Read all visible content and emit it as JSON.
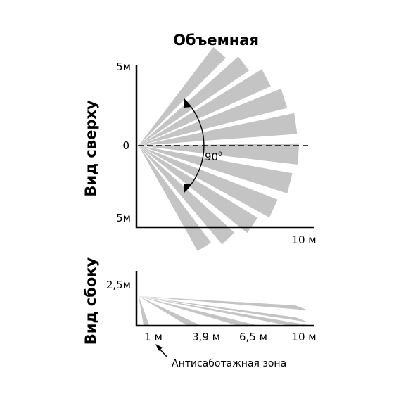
{
  "title": "Объемная",
  "top_view": {
    "label": "Вид сверху",
    "y_top_label": "5м",
    "y_center_label": "0",
    "y_bottom_label": "5м",
    "x_label": "10 м",
    "angle_label": "90",
    "angle_degree_mark": "0"
  },
  "side_view": {
    "label": "Вид сбоку",
    "y_label": "2,5м",
    "x_ticks": [
      "1 м",
      "3,9 м",
      "6,5 м",
      "10 м"
    ],
    "annotation": "Антисаботажная зона"
  },
  "colors": {
    "beam": "#c4c4c4",
    "ink": "#000000",
    "background": "#ffffff"
  }
}
